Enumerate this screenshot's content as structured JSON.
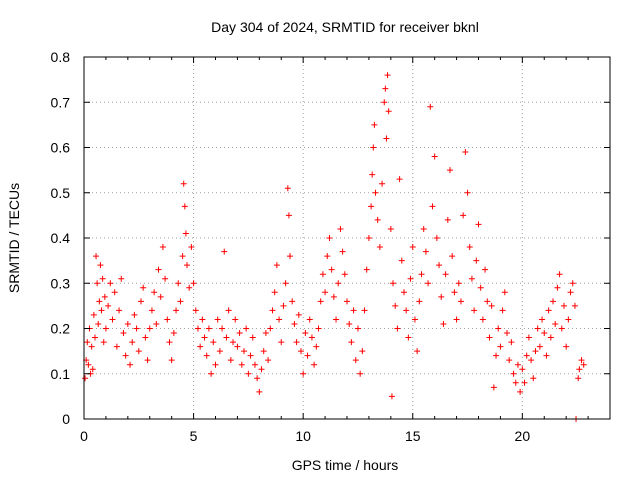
{
  "chart_data": {
    "type": "scatter",
    "title": "Day 304 of 2024, SRMTID for receiver bknl",
    "xlabel": "GPS time / hours",
    "ylabel": "SRMTID / TECUs",
    "xlim": [
      0,
      24
    ],
    "ylim": [
      0,
      0.8
    ],
    "xticks": [
      0,
      5,
      10,
      15,
      20
    ],
    "xtick_labels": [
      "0",
      "5",
      "10",
      "15",
      "20"
    ],
    "yticks": [
      0,
      0.1,
      0.2,
      0.3,
      0.4,
      0.5,
      0.6,
      0.7,
      0.8
    ],
    "ytick_labels": [
      "0",
      "0.1",
      "0.2",
      "0.3",
      "0.4",
      "0.5",
      "0.6",
      "0.7",
      "0.8"
    ],
    "grid": true,
    "marker": "+",
    "color": "#ff0000",
    "series": [
      {
        "name": "SRMTID",
        "points": [
          [
            0.05,
            0.09
          ],
          [
            0.1,
            0.13
          ],
          [
            0.15,
            0.17
          ],
          [
            0.2,
            0.12
          ],
          [
            0.25,
            0.2
          ],
          [
            0.3,
            0.1
          ],
          [
            0.35,
            0.16
          ],
          [
            0.4,
            0.11
          ],
          [
            0.45,
            0.23
          ],
          [
            0.5,
            0.18
          ],
          [
            0.55,
            0.36
          ],
          [
            0.6,
            0.3
          ],
          [
            0.65,
            0.21
          ],
          [
            0.7,
            0.26
          ],
          [
            0.75,
            0.34
          ],
          [
            0.8,
            0.24
          ],
          [
            0.85,
            0.31
          ],
          [
            0.9,
            0.17
          ],
          [
            0.95,
            0.27
          ],
          [
            1.0,
            0.2
          ],
          [
            1.1,
            0.25
          ],
          [
            1.2,
            0.3
          ],
          [
            1.3,
            0.22
          ],
          [
            1.4,
            0.28
          ],
          [
            1.5,
            0.16
          ],
          [
            1.6,
            0.24
          ],
          [
            1.7,
            0.31
          ],
          [
            1.8,
            0.19
          ],
          [
            1.9,
            0.14
          ],
          [
            2.0,
            0.21
          ],
          [
            2.1,
            0.12
          ],
          [
            2.2,
            0.17
          ],
          [
            2.3,
            0.23
          ],
          [
            2.4,
            0.2
          ],
          [
            2.5,
            0.15
          ],
          [
            2.6,
            0.26
          ],
          [
            2.7,
            0.29
          ],
          [
            2.8,
            0.18
          ],
          [
            2.9,
            0.13
          ],
          [
            3.0,
            0.2
          ],
          [
            3.1,
            0.24
          ],
          [
            3.2,
            0.28
          ],
          [
            3.3,
            0.21
          ],
          [
            3.4,
            0.33
          ],
          [
            3.5,
            0.27
          ],
          [
            3.6,
            0.38
          ],
          [
            3.7,
            0.31
          ],
          [
            3.8,
            0.22
          ],
          [
            3.9,
            0.17
          ],
          [
            4.0,
            0.13
          ],
          [
            4.1,
            0.19
          ],
          [
            4.2,
            0.24
          ],
          [
            4.3,
            0.3
          ],
          [
            4.4,
            0.26
          ],
          [
            4.5,
            0.36
          ],
          [
            4.55,
            0.52
          ],
          [
            4.6,
            0.47
          ],
          [
            4.65,
            0.41
          ],
          [
            4.7,
            0.34
          ],
          [
            4.8,
            0.29
          ],
          [
            4.9,
            0.38
          ],
          [
            5.0,
            0.3
          ],
          [
            5.1,
            0.24
          ],
          [
            5.2,
            0.2
          ],
          [
            5.3,
            0.16
          ],
          [
            5.4,
            0.22
          ],
          [
            5.5,
            0.18
          ],
          [
            5.6,
            0.14
          ],
          [
            5.7,
            0.2
          ],
          [
            5.8,
            0.1
          ],
          [
            5.9,
            0.17
          ],
          [
            6.0,
            0.12
          ],
          [
            6.1,
            0.22
          ],
          [
            6.2,
            0.15
          ],
          [
            6.3,
            0.2
          ],
          [
            6.4,
            0.37
          ],
          [
            6.5,
            0.18
          ],
          [
            6.6,
            0.24
          ],
          [
            6.7,
            0.13
          ],
          [
            6.8,
            0.17
          ],
          [
            6.9,
            0.22
          ],
          [
            7.0,
            0.16
          ],
          [
            7.1,
            0.19
          ],
          [
            7.2,
            0.12
          ],
          [
            7.3,
            0.15
          ],
          [
            7.4,
            0.2
          ],
          [
            7.5,
            0.1
          ],
          [
            7.6,
            0.14
          ],
          [
            7.7,
            0.18
          ],
          [
            7.8,
            0.12
          ],
          [
            7.9,
            0.09
          ],
          [
            8.0,
            0.06
          ],
          [
            8.1,
            0.11
          ],
          [
            8.2,
            0.15
          ],
          [
            8.3,
            0.19
          ],
          [
            8.4,
            0.13
          ],
          [
            8.5,
            0.2
          ],
          [
            8.6,
            0.24
          ],
          [
            8.7,
            0.28
          ],
          [
            8.8,
            0.34
          ],
          [
            8.9,
            0.22
          ],
          [
            9.0,
            0.17
          ],
          [
            9.1,
            0.25
          ],
          [
            9.2,
            0.3
          ],
          [
            9.3,
            0.51
          ],
          [
            9.35,
            0.45
          ],
          [
            9.4,
            0.36
          ],
          [
            9.5,
            0.26
          ],
          [
            9.6,
            0.21
          ],
          [
            9.7,
            0.17
          ],
          [
            9.8,
            0.23
          ],
          [
            9.9,
            0.15
          ],
          [
            10.0,
            0.1
          ],
          [
            10.1,
            0.19
          ],
          [
            10.2,
            0.14
          ],
          [
            10.3,
            0.22
          ],
          [
            10.4,
            0.18
          ],
          [
            10.5,
            0.12
          ],
          [
            10.6,
            0.16
          ],
          [
            10.7,
            0.2
          ],
          [
            10.8,
            0.26
          ],
          [
            10.9,
            0.32
          ],
          [
            11.0,
            0.28
          ],
          [
            11.1,
            0.36
          ],
          [
            11.2,
            0.4
          ],
          [
            11.3,
            0.33
          ],
          [
            11.4,
            0.27
          ],
          [
            11.5,
            0.22
          ],
          [
            11.6,
            0.3
          ],
          [
            11.7,
            0.42
          ],
          [
            11.8,
            0.37
          ],
          [
            11.9,
            0.32
          ],
          [
            12.0,
            0.26
          ],
          [
            12.1,
            0.21
          ],
          [
            12.2,
            0.17
          ],
          [
            12.3,
            0.24
          ],
          [
            12.4,
            0.13
          ],
          [
            12.5,
            0.2
          ],
          [
            12.6,
            0.1
          ],
          [
            12.7,
            0.15
          ],
          [
            12.8,
            0.24
          ],
          [
            12.9,
            0.33
          ],
          [
            13.0,
            0.4
          ],
          [
            13.1,
            0.47
          ],
          [
            13.15,
            0.54
          ],
          [
            13.2,
            0.6
          ],
          [
            13.25,
            0.65
          ],
          [
            13.3,
            0.5
          ],
          [
            13.4,
            0.44
          ],
          [
            13.5,
            0.38
          ],
          [
            13.6,
            0.52
          ],
          [
            13.7,
            0.7
          ],
          [
            13.75,
            0.73
          ],
          [
            13.8,
            0.62
          ],
          [
            13.85,
            0.76
          ],
          [
            13.9,
            0.68
          ],
          [
            14.0,
            0.42
          ],
          [
            14.05,
            0.05
          ],
          [
            14.1,
            0.3
          ],
          [
            14.2,
            0.25
          ],
          [
            14.3,
            0.2
          ],
          [
            14.4,
            0.53
          ],
          [
            14.5,
            0.35
          ],
          [
            14.6,
            0.28
          ],
          [
            14.7,
            0.24
          ],
          [
            14.8,
            0.18
          ],
          [
            14.9,
            0.31
          ],
          [
            15.0,
            0.38
          ],
          [
            15.1,
            0.22
          ],
          [
            15.2,
            0.15
          ],
          [
            15.3,
            0.26
          ],
          [
            15.4,
            0.32
          ],
          [
            15.5,
            0.42
          ],
          [
            15.6,
            0.37
          ],
          [
            15.7,
            0.3
          ],
          [
            15.8,
            0.69
          ],
          [
            15.9,
            0.47
          ],
          [
            16.0,
            0.58
          ],
          [
            16.1,
            0.4
          ],
          [
            16.2,
            0.34
          ],
          [
            16.3,
            0.27
          ],
          [
            16.4,
            0.21
          ],
          [
            16.5,
            0.32
          ],
          [
            16.6,
            0.44
          ],
          [
            16.7,
            0.55
          ],
          [
            16.8,
            0.36
          ],
          [
            16.9,
            0.28
          ],
          [
            17.0,
            0.22
          ],
          [
            17.1,
            0.3
          ],
          [
            17.2,
            0.26
          ],
          [
            17.3,
            0.45
          ],
          [
            17.4,
            0.59
          ],
          [
            17.5,
            0.5
          ],
          [
            17.6,
            0.38
          ],
          [
            17.7,
            0.31
          ],
          [
            17.8,
            0.24
          ],
          [
            17.9,
            0.35
          ],
          [
            18.0,
            0.43
          ],
          [
            18.1,
            0.29
          ],
          [
            18.2,
            0.22
          ],
          [
            18.3,
            0.33
          ],
          [
            18.4,
            0.26
          ],
          [
            18.5,
            0.18
          ],
          [
            18.6,
            0.25
          ],
          [
            18.7,
            0.07
          ],
          [
            18.8,
            0.14
          ],
          [
            18.9,
            0.2
          ],
          [
            19.0,
            0.16
          ],
          [
            19.1,
            0.24
          ],
          [
            19.2,
            0.28
          ],
          [
            19.3,
            0.19
          ],
          [
            19.4,
            0.13
          ],
          [
            19.5,
            0.17
          ],
          [
            19.6,
            0.1
          ],
          [
            19.7,
            0.08
          ],
          [
            19.8,
            0.12
          ],
          [
            19.9,
            0.06
          ],
          [
            20.0,
            0.11
          ],
          [
            20.1,
            0.08
          ],
          [
            20.2,
            0.14
          ],
          [
            20.3,
            0.18
          ],
          [
            20.4,
            0.13
          ],
          [
            20.5,
            0.09
          ],
          [
            20.6,
            0.15
          ],
          [
            20.7,
            0.2
          ],
          [
            20.8,
            0.16
          ],
          [
            20.9,
            0.22
          ],
          [
            21.0,
            0.19
          ],
          [
            21.1,
            0.14
          ],
          [
            21.2,
            0.24
          ],
          [
            21.3,
            0.18
          ],
          [
            21.4,
            0.26
          ],
          [
            21.5,
            0.21
          ],
          [
            21.6,
            0.29
          ],
          [
            21.7,
            0.32
          ],
          [
            21.8,
            0.2
          ],
          [
            21.9,
            0.25
          ],
          [
            22.0,
            0.16
          ],
          [
            22.1,
            0.22
          ],
          [
            22.2,
            0.28
          ],
          [
            22.3,
            0.3
          ],
          [
            22.4,
            0.25
          ],
          [
            22.45,
            0.0
          ],
          [
            22.55,
            0.09
          ],
          [
            22.6,
            0.11
          ],
          [
            22.7,
            0.13
          ],
          [
            22.8,
            0.12
          ]
        ]
      }
    ]
  }
}
